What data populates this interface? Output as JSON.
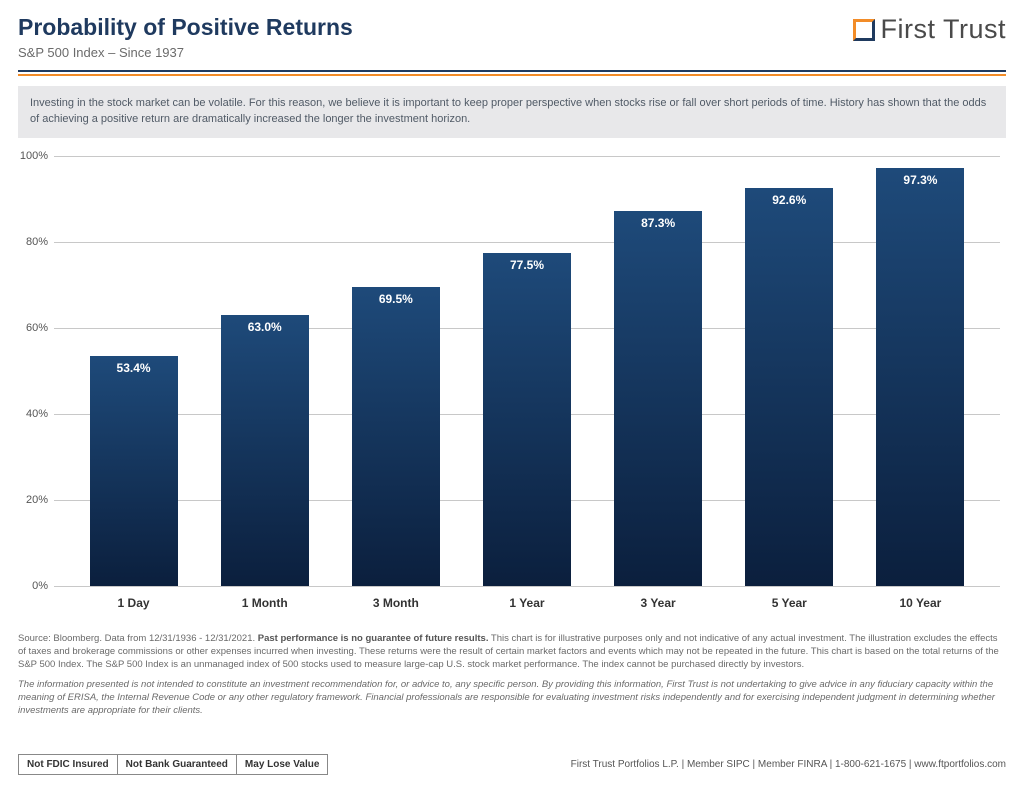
{
  "header": {
    "title": "Probability of Positive Returns",
    "subtitle": "S&P 500 Index – Since 1937",
    "brand": "First Trust"
  },
  "intro": "Investing in the stock market can be volatile. For this reason, we believe it is important to keep proper perspective when stocks rise or fall over short periods of time. History has shown that the odds of achieving a positive return are dramatically increased the longer the investment horizon.",
  "chart": {
    "type": "bar",
    "ylim": [
      0,
      100
    ],
    "ytick_step": 20,
    "y_ticks": [
      0,
      20,
      40,
      60,
      80,
      100
    ],
    "y_tick_labels": [
      "0%",
      "20%",
      "40%",
      "60%",
      "80%",
      "100%"
    ],
    "categories": [
      "1 Day",
      "1 Month",
      "3 Month",
      "1 Year",
      "3 Year",
      "5 Year",
      "10 Year"
    ],
    "values": [
      53.4,
      63.0,
      69.5,
      77.5,
      87.3,
      92.6,
      97.3
    ],
    "value_labels": [
      "53.4%",
      "63.0%",
      "69.5%",
      "77.5%",
      "87.3%",
      "92.6%",
      "97.3%"
    ],
    "bar_gradient_bottom": "#0b1f3d",
    "bar_gradient_top": "#1e4a7a",
    "grid_color": "#c8c8c8",
    "background_color": "#ffffff",
    "label_font_size": 12,
    "axis_font_size": 11
  },
  "footnote_main": "Source: Bloomberg. Data from 12/31/1936 - 12/31/2021. ",
  "footnote_bold": "Past performance is no guarantee of future results.",
  "footnote_main2": " This chart is for illustrative purposes only and not indicative of any actual investment. The illustration excludes the effects of taxes and brokerage commissions or other expenses incurred when investing. These returns were the result of certain market factors and events which may not be repeated in the future. This chart is based on the total returns of the S&P 500 Index. The S&P 500 Index is an unmanaged index of 500 stocks used to measure large-cap U.S. stock market performance. The index cannot be purchased directly by investors.",
  "footnote_italic": "The information presented is not intended to constitute an investment recommendation for, or advice to, any specific person. By providing this information, First Trust is not undertaking to give advice in any fiduciary capacity within the meaning of ERISA, the Internal Revenue Code or any other regulatory framework. Financial professionals are responsible for evaluating investment risks independently and for exercising independent judgment in determining whether investments are appropriate for their clients.",
  "disclosures": [
    "Not FDIC Insured",
    "Not Bank Guaranteed",
    "May Lose Value"
  ],
  "footer": "First Trust Portfolios L.P.  |  Member SIPC  |  Member FINRA  |  1-800-621-1675  |  www.ftportfolios.com",
  "colors": {
    "title": "#1f3a5f",
    "accent_orange": "#f28c28",
    "accent_blue": "#1f3a5f",
    "intro_bg": "#e8e8ea",
    "text_muted": "#6a6a6a"
  }
}
